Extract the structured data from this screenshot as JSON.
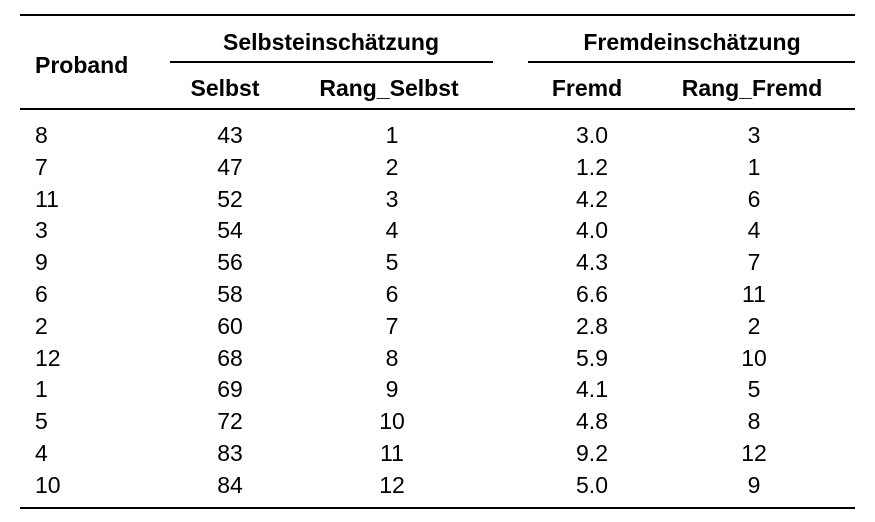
{
  "table": {
    "header": {
      "proband": "Proband",
      "group_self": "Selbsteinschätzung",
      "group_other": "Fremdeinschätzung",
      "selbst": "Selbst",
      "rang_selbst": "Rang_Selbst",
      "fremd": "Fremd",
      "rang_fremd": "Rang_Fremd"
    },
    "rows": [
      [
        "8",
        "43",
        "1",
        "3.0",
        "3"
      ],
      [
        "7",
        "47",
        "2",
        "1.2",
        "1"
      ],
      [
        "11",
        "52",
        "3",
        "4.2",
        "6"
      ],
      [
        "3",
        "54",
        "4",
        "4.0",
        "4"
      ],
      [
        "9",
        "56",
        "5",
        "4.3",
        "7"
      ],
      [
        "6",
        "58",
        "6",
        "6.6",
        "11"
      ],
      [
        "2",
        "60",
        "7",
        "2.8",
        "2"
      ],
      [
        "12",
        "68",
        "8",
        "5.9",
        "10"
      ],
      [
        "1",
        "69",
        "9",
        "4.1",
        "5"
      ],
      [
        "5",
        "72",
        "10",
        "4.8",
        "8"
      ],
      [
        "4",
        "83",
        "11",
        "9.2",
        "12"
      ],
      [
        "10",
        "84",
        "12",
        "5.0",
        "9"
      ]
    ]
  }
}
